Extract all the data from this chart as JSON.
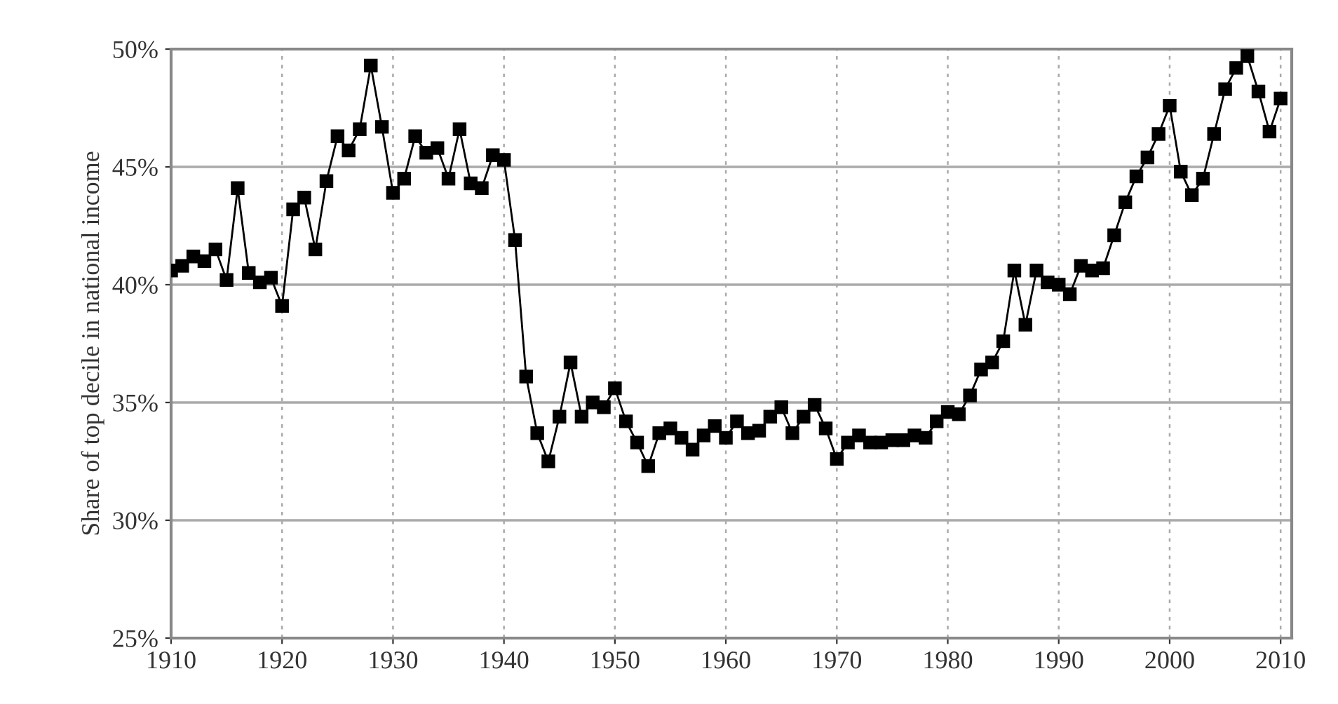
{
  "chart_data": {
    "type": "line",
    "ylabel": "Share of top decile in national income",
    "x": [
      1910,
      1911,
      1912,
      1913,
      1914,
      1915,
      1916,
      1917,
      1918,
      1919,
      1920,
      1921,
      1922,
      1923,
      1924,
      1925,
      1926,
      1927,
      1928,
      1929,
      1930,
      1931,
      1932,
      1933,
      1934,
      1935,
      1936,
      1937,
      1938,
      1939,
      1940,
      1941,
      1942,
      1943,
      1944,
      1945,
      1946,
      1947,
      1948,
      1949,
      1950,
      1951,
      1952,
      1953,
      1954,
      1955,
      1956,
      1957,
      1958,
      1959,
      1960,
      1961,
      1962,
      1963,
      1964,
      1965,
      1966,
      1967,
      1968,
      1969,
      1970,
      1971,
      1972,
      1973,
      1974,
      1975,
      1976,
      1977,
      1978,
      1979,
      1980,
      1981,
      1982,
      1983,
      1984,
      1985,
      1986,
      1987,
      1988,
      1989,
      1990,
      1991,
      1992,
      1993,
      1994,
      1995,
      1996,
      1997,
      1998,
      1999,
      2000,
      2001,
      2002,
      2003,
      2004,
      2005,
      2006,
      2007,
      2008,
      2009,
      2010
    ],
    "series": [
      {
        "color": "#000000",
        "values": [
          40.6,
          40.8,
          41.2,
          41.0,
          41.5,
          40.2,
          44.1,
          40.5,
          40.1,
          40.3,
          39.1,
          43.2,
          43.7,
          41.5,
          44.4,
          46.3,
          45.7,
          46.6,
          49.3,
          46.7,
          43.9,
          44.5,
          46.3,
          45.6,
          45.8,
          44.5,
          46.6,
          44.3,
          44.1,
          45.5,
          45.3,
          41.9,
          36.1,
          33.7,
          32.5,
          34.4,
          36.7,
          34.4,
          35.0,
          34.8,
          35.6,
          34.2,
          33.3,
          32.3,
          33.7,
          33.9,
          33.5,
          33.0,
          33.6,
          34.0,
          33.5,
          34.2,
          33.7,
          33.8,
          34.4,
          34.8,
          33.7,
          34.4,
          34.9,
          33.9,
          32.6,
          33.3,
          33.6,
          33.3,
          33.3,
          33.4,
          33.4,
          33.6,
          33.5,
          34.2,
          34.6,
          34.5,
          35.3,
          36.4,
          36.7,
          37.6,
          40.6,
          38.3,
          40.6,
          40.1,
          40.0,
          39.6,
          40.8,
          40.6,
          40.7,
          42.1,
          43.5,
          44.6,
          45.4,
          46.4,
          47.6,
          44.8,
          43.8,
          44.5,
          46.4,
          48.3,
          49.2,
          49.7,
          48.2,
          46.5,
          47.9
        ]
      }
    ],
    "marker": "square",
    "line_style": "solid",
    "grid": true,
    "legend": false,
    "xlim": [
      1910,
      2011
    ],
    "ylim": [
      25,
      50
    ],
    "xticks": [
      1910,
      1920,
      1930,
      1940,
      1950,
      1960,
      1970,
      1980,
      1990,
      2000,
      2010
    ],
    "yticks": [
      {
        "value": 25,
        "label": "25%"
      },
      {
        "value": 30,
        "label": "30%"
      },
      {
        "value": 35,
        "label": "35%"
      },
      {
        "value": 40,
        "label": "40%"
      },
      {
        "value": 45,
        "label": "45%"
      },
      {
        "value": 50,
        "label": "50%"
      }
    ]
  }
}
